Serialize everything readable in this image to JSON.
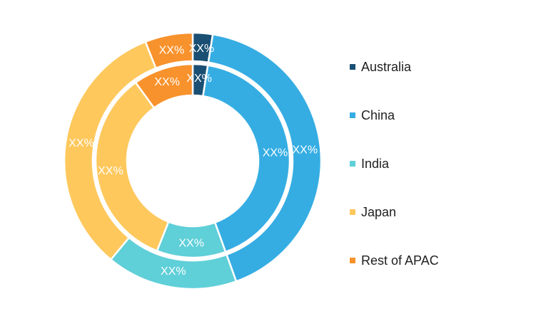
{
  "chart_data": {
    "type": "pie",
    "title": "",
    "categories": [
      "Australia",
      "China",
      "India",
      "Japan",
      "Rest of APAC"
    ],
    "colors": [
      "#1a4f73",
      "#35ade3",
      "#5fcfd8",
      "#fec85d",
      "#f8922c"
    ],
    "series": [
      {
        "ring": "outer",
        "values": [
          2.5,
          42.0,
          16.5,
          33.0,
          6.0
        ],
        "labels": [
          "XX%",
          "XX%",
          "XX%",
          "XX%",
          "XX%"
        ]
      },
      {
        "ring": "inner",
        "values": [
          2.5,
          42.0,
          11.5,
          34.0,
          10.0
        ],
        "labels": [
          "XX%",
          "XX%",
          "XX%",
          "XX%",
          "XX%"
        ]
      }
    ],
    "legend_placement": "right"
  }
}
